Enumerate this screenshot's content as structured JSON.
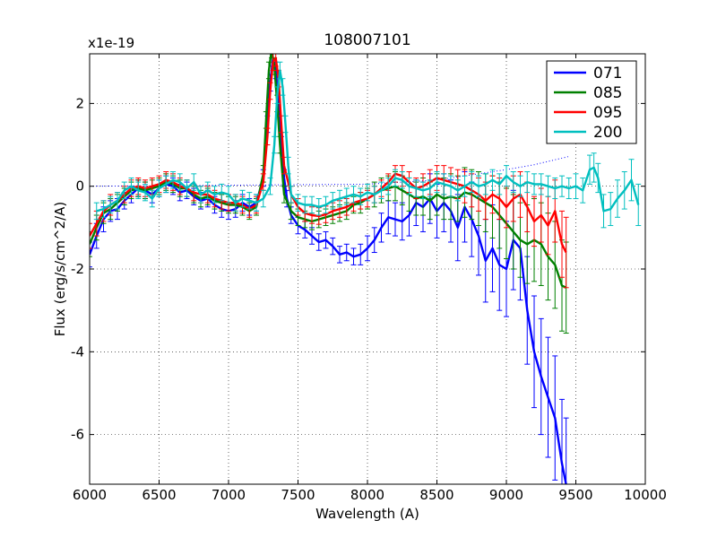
{
  "chart_data": {
    "type": "line",
    "title": "108007101",
    "xlabel": "Wavelength (A)",
    "ylabel": "Flux (erg/s/cm^2/A)",
    "offset_label": "x1e-19",
    "xlim": [
      6000,
      10000
    ],
    "ylim": [
      -7.2,
      3.2
    ],
    "xticks": [
      6000,
      6500,
      7000,
      7500,
      8000,
      8500,
      9000,
      9500,
      10000
    ],
    "xtick_labels": [
      "6000",
      "6500",
      "7000",
      "7500",
      "8000",
      "8500",
      "9000",
      "9500",
      "10000"
    ],
    "yticks": [
      2,
      0,
      -2,
      -4,
      -6
    ],
    "ytick_labels": [
      "2",
      "0",
      "-2",
      "-4",
      "-6"
    ],
    "grid": true,
    "legend_position": "top-right",
    "reference_line": {
      "style": "dotted",
      "color": "#0000ff",
      "x": [
        6000,
        8000,
        8500,
        8800,
        9000,
        9200,
        9450
      ],
      "y": [
        0.0,
        0.05,
        0.15,
        0.3,
        0.4,
        0.52,
        0.72
      ]
    },
    "series": [
      {
        "name": "071",
        "color": "#0000ff",
        "x": [
          6000,
          6050,
          6100,
          6150,
          6200,
          6250,
          6300,
          6350,
          6400,
          6450,
          6500,
          6550,
          6600,
          6650,
          6700,
          6750,
          6800,
          6850,
          6900,
          6950,
          7000,
          7050,
          7100,
          7150,
          7200,
          7250,
          7280,
          7300,
          7320,
          7340,
          7360,
          7380,
          7400,
          7420,
          7450,
          7500,
          7550,
          7600,
          7650,
          7700,
          7750,
          7800,
          7850,
          7900,
          7950,
          8000,
          8050,
          8100,
          8150,
          8200,
          8250,
          8300,
          8350,
          8400,
          8450,
          8500,
          8550,
          8600,
          8650,
          8700,
          8750,
          8800,
          8850,
          8900,
          8950,
          9000,
          9050,
          9100,
          9150,
          9200,
          9250,
          9300,
          9350,
          9400,
          9430
        ],
        "y": [
          -1.65,
          -1.2,
          -0.8,
          -0.6,
          -0.55,
          -0.35,
          -0.2,
          -0.05,
          -0.1,
          -0.2,
          -0.05,
          0.05,
          0.0,
          -0.15,
          -0.1,
          -0.25,
          -0.35,
          -0.3,
          -0.45,
          -0.55,
          -0.6,
          -0.55,
          -0.4,
          -0.5,
          -0.4,
          0.2,
          1.5,
          2.5,
          3.1,
          2.8,
          2.0,
          1.0,
          0.2,
          -0.3,
          -0.7,
          -0.95,
          -1.05,
          -1.2,
          -1.35,
          -1.3,
          -1.45,
          -1.65,
          -1.6,
          -1.7,
          -1.65,
          -1.5,
          -1.3,
          -1.0,
          -0.75,
          -0.8,
          -0.85,
          -0.7,
          -0.4,
          -0.5,
          -0.3,
          -0.6,
          -0.4,
          -0.6,
          -1.0,
          -0.5,
          -0.8,
          -1.2,
          -1.8,
          -1.5,
          -1.9,
          -2.0,
          -1.3,
          -1.5,
          -3.0,
          -4.0,
          -4.6,
          -5.1,
          -5.6,
          -6.7,
          -7.2
        ],
        "err": [
          0.3,
          0.3,
          0.3,
          0.25,
          0.25,
          0.2,
          0.2,
          0.2,
          0.2,
          0.2,
          0.2,
          0.2,
          0.2,
          0.2,
          0.2,
          0.2,
          0.2,
          0.2,
          0.2,
          0.2,
          0.2,
          0.2,
          0.2,
          0.2,
          0.2,
          0.2,
          0.2,
          0.2,
          0.2,
          0.2,
          0.2,
          0.2,
          0.2,
          0.2,
          0.2,
          0.2,
          0.2,
          0.2,
          0.2,
          0.2,
          0.2,
          0.2,
          0.2,
          0.2,
          0.25,
          0.3,
          0.3,
          0.35,
          0.4,
          0.4,
          0.45,
          0.5,
          0.55,
          0.6,
          0.6,
          0.65,
          0.7,
          0.75,
          0.8,
          0.85,
          0.9,
          0.95,
          1.0,
          1.05,
          1.1,
          1.15,
          1.2,
          1.25,
          1.3,
          1.35,
          1.4,
          1.45,
          1.5,
          1.55,
          1.6
        ]
      },
      {
        "name": "085",
        "color": "#008000",
        "x": [
          6000,
          6050,
          6100,
          6150,
          6200,
          6250,
          6300,
          6350,
          6400,
          6450,
          6500,
          6550,
          6600,
          6650,
          6700,
          6750,
          6800,
          6850,
          6900,
          6950,
          7000,
          7050,
          7100,
          7150,
          7200,
          7250,
          7270,
          7290,
          7310,
          7330,
          7350,
          7370,
          7400,
          7450,
          7500,
          7550,
          7600,
          7650,
          7700,
          7750,
          7800,
          7850,
          7900,
          7950,
          8000,
          8050,
          8100,
          8150,
          8200,
          8250,
          8300,
          8350,
          8400,
          8450,
          8500,
          8550,
          8600,
          8650,
          8700,
          8750,
          8800,
          8850,
          8900,
          8950,
          9000,
          9050,
          9100,
          9150,
          9200,
          9250,
          9300,
          9350,
          9400,
          9430
        ],
        "y": [
          -1.4,
          -1.0,
          -0.65,
          -0.55,
          -0.4,
          -0.25,
          -0.1,
          -0.05,
          -0.1,
          -0.05,
          0.0,
          0.1,
          0.05,
          -0.05,
          -0.05,
          -0.2,
          -0.3,
          -0.25,
          -0.35,
          -0.4,
          -0.45,
          -0.45,
          -0.5,
          -0.6,
          -0.5,
          0.3,
          1.6,
          2.8,
          3.3,
          2.9,
          2.0,
          1.0,
          -0.2,
          -0.6,
          -0.75,
          -0.8,
          -0.85,
          -0.8,
          -0.75,
          -0.7,
          -0.65,
          -0.6,
          -0.45,
          -0.4,
          -0.3,
          -0.2,
          -0.1,
          -0.05,
          0.0,
          -0.1,
          -0.2,
          -0.3,
          -0.25,
          -0.35,
          -0.2,
          -0.3,
          -0.25,
          -0.3,
          -0.15,
          -0.2,
          -0.3,
          -0.4,
          -0.5,
          -0.7,
          -0.9,
          -1.1,
          -1.3,
          -1.4,
          -1.3,
          -1.4,
          -1.7,
          -1.9,
          -2.4,
          -2.45
        ],
        "err": [
          0.3,
          0.3,
          0.25,
          0.25,
          0.2,
          0.2,
          0.2,
          0.2,
          0.2,
          0.2,
          0.2,
          0.2,
          0.2,
          0.2,
          0.2,
          0.2,
          0.2,
          0.2,
          0.2,
          0.2,
          0.2,
          0.2,
          0.2,
          0.2,
          0.2,
          0.2,
          0.2,
          0.2,
          0.2,
          0.2,
          0.2,
          0.2,
          0.2,
          0.2,
          0.2,
          0.2,
          0.2,
          0.2,
          0.2,
          0.2,
          0.2,
          0.2,
          0.2,
          0.25,
          0.25,
          0.3,
          0.3,
          0.3,
          0.35,
          0.35,
          0.4,
          0.4,
          0.45,
          0.45,
          0.5,
          0.5,
          0.55,
          0.55,
          0.6,
          0.6,
          0.65,
          0.7,
          0.75,
          0.8,
          0.85,
          0.9,
          0.9,
          0.95,
          1.0,
          1.0,
          1.05,
          1.05,
          1.1,
          1.1
        ]
      },
      {
        "name": "095",
        "color": "#ff0000",
        "x": [
          6000,
          6050,
          6100,
          6150,
          6200,
          6250,
          6300,
          6350,
          6400,
          6450,
          6500,
          6550,
          6600,
          6650,
          6700,
          6750,
          6800,
          6850,
          6900,
          6950,
          7000,
          7050,
          7100,
          7150,
          7200,
          7250,
          7280,
          7300,
          7320,
          7340,
          7360,
          7380,
          7400,
          7450,
          7500,
          7550,
          7600,
          7650,
          7700,
          7750,
          7800,
          7850,
          7900,
          7950,
          8000,
          8050,
          8100,
          8150,
          8200,
          8250,
          8300,
          8350,
          8400,
          8450,
          8500,
          8550,
          8600,
          8650,
          8700,
          8750,
          8800,
          8850,
          8900,
          8950,
          9000,
          9050,
          9100,
          9150,
          9200,
          9250,
          9300,
          9350,
          9400,
          9430
        ],
        "y": [
          -1.2,
          -0.9,
          -0.6,
          -0.45,
          -0.35,
          -0.2,
          -0.05,
          0.0,
          -0.05,
          0.0,
          0.05,
          0.15,
          0.1,
          0.0,
          -0.05,
          -0.15,
          -0.2,
          -0.2,
          -0.3,
          -0.35,
          -0.4,
          -0.4,
          -0.45,
          -0.55,
          -0.45,
          0.1,
          1.2,
          2.3,
          3.0,
          3.1,
          2.6,
          1.5,
          0.5,
          -0.2,
          -0.5,
          -0.65,
          -0.7,
          -0.72,
          -0.68,
          -0.6,
          -0.55,
          -0.5,
          -0.4,
          -0.35,
          -0.3,
          -0.2,
          -0.05,
          0.1,
          0.3,
          0.25,
          0.1,
          -0.05,
          0.0,
          0.1,
          0.2,
          0.15,
          0.1,
          0.05,
          0.0,
          -0.1,
          -0.2,
          -0.35,
          -0.2,
          -0.3,
          -0.5,
          -0.3,
          -0.2,
          -0.5,
          -0.85,
          -0.7,
          -0.95,
          -0.6,
          -1.4,
          -1.6
        ],
        "err": [
          0.3,
          0.3,
          0.25,
          0.25,
          0.2,
          0.2,
          0.2,
          0.2,
          0.2,
          0.2,
          0.2,
          0.2,
          0.2,
          0.2,
          0.2,
          0.2,
          0.2,
          0.2,
          0.2,
          0.2,
          0.2,
          0.2,
          0.2,
          0.2,
          0.2,
          0.2,
          0.2,
          0.2,
          0.2,
          0.2,
          0.2,
          0.2,
          0.2,
          0.2,
          0.2,
          0.2,
          0.2,
          0.2,
          0.2,
          0.2,
          0.2,
          0.2,
          0.2,
          0.2,
          0.2,
          0.2,
          0.2,
          0.2,
          0.2,
          0.25,
          0.25,
          0.25,
          0.3,
          0.3,
          0.3,
          0.35,
          0.35,
          0.35,
          0.4,
          0.4,
          0.4,
          0.45,
          0.45,
          0.5,
          0.5,
          0.55,
          0.55,
          0.6,
          0.6,
          0.65,
          0.7,
          0.75,
          0.8,
          0.85
        ]
      },
      {
        "name": "200",
        "color": "#00bfbf",
        "x": [
          6050,
          6100,
          6150,
          6200,
          6250,
          6300,
          6350,
          6400,
          6450,
          6500,
          6550,
          6600,
          6650,
          6700,
          6750,
          6800,
          6850,
          6900,
          6950,
          7000,
          7050,
          7100,
          7150,
          7200,
          7250,
          7300,
          7330,
          7350,
          7370,
          7390,
          7410,
          7430,
          7450,
          7500,
          7550,
          7600,
          7650,
          7700,
          7750,
          7800,
          7850,
          7900,
          7950,
          8000,
          8050,
          8100,
          8150,
          8200,
          8250,
          8300,
          8350,
          8400,
          8450,
          8500,
          8550,
          8600,
          8650,
          8700,
          8750,
          8800,
          8850,
          8900,
          8950,
          9000,
          9050,
          9100,
          9150,
          9200,
          9250,
          9300,
          9350,
          9400,
          9450,
          9500,
          9550,
          9600,
          9630,
          9660,
          9700,
          9750,
          9800,
          9850,
          9900,
          9950
        ],
        "y": [
          -0.6,
          -0.55,
          -0.45,
          -0.35,
          -0.1,
          0.0,
          -0.1,
          -0.15,
          -0.3,
          -0.05,
          0.05,
          0.15,
          0.1,
          -0.05,
          0.1,
          -0.2,
          -0.1,
          -0.2,
          -0.15,
          -0.2,
          -0.4,
          -0.3,
          -0.35,
          -0.4,
          -0.3,
          0.0,
          1.0,
          2.2,
          2.8,
          2.4,
          1.5,
          0.5,
          -0.2,
          -0.4,
          -0.45,
          -0.45,
          -0.5,
          -0.45,
          -0.35,
          -0.3,
          -0.25,
          -0.2,
          -0.25,
          -0.15,
          -0.2,
          -0.1,
          0.0,
          0.2,
          0.15,
          0.0,
          -0.05,
          -0.1,
          -0.05,
          0.1,
          0.05,
          0.0,
          -0.1,
          0.0,
          0.1,
          0.0,
          0.05,
          0.15,
          0.05,
          0.25,
          0.1,
          0.0,
          0.1,
          0.05,
          0.05,
          0.0,
          -0.05,
          0.0,
          -0.05,
          0.0,
          -0.1,
          0.4,
          0.45,
          0.2,
          -0.6,
          -0.55,
          -0.3,
          -0.1,
          0.15,
          -0.45
        ],
        "err": [
          0.2,
          0.2,
          0.2,
          0.2,
          0.2,
          0.2,
          0.2,
          0.2,
          0.2,
          0.2,
          0.2,
          0.2,
          0.2,
          0.2,
          0.2,
          0.2,
          0.2,
          0.2,
          0.2,
          0.2,
          0.2,
          0.2,
          0.2,
          0.2,
          0.2,
          0.2,
          0.2,
          0.2,
          0.2,
          0.2,
          0.2,
          0.2,
          0.2,
          0.2,
          0.2,
          0.2,
          0.2,
          0.2,
          0.2,
          0.2,
          0.2,
          0.2,
          0.2,
          0.2,
          0.2,
          0.2,
          0.2,
          0.2,
          0.2,
          0.2,
          0.2,
          0.2,
          0.2,
          0.25,
          0.25,
          0.25,
          0.25,
          0.25,
          0.25,
          0.25,
          0.25,
          0.25,
          0.25,
          0.25,
          0.25,
          0.25,
          0.25,
          0.25,
          0.25,
          0.25,
          0.25,
          0.25,
          0.25,
          0.3,
          0.3,
          0.35,
          0.35,
          0.35,
          0.4,
          0.4,
          0.45,
          0.45,
          0.5,
          0.5
        ]
      }
    ]
  }
}
